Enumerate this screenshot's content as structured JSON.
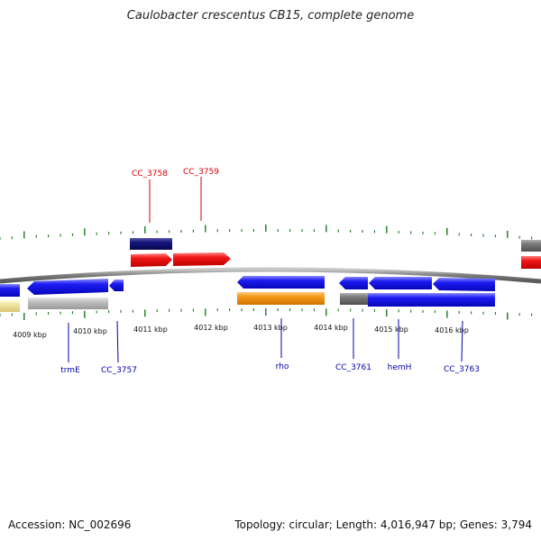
{
  "title": "Caulobacter crescentus CB15, complete genome",
  "accession": "Accession: NC_002696",
  "summary": "Topology: circular; Length: 4,016,947 bp; Genes: 3,794",
  "colors": {
    "backbone": "#808080",
    "tick": "#1a7a1a",
    "forward_label": "#dd0000",
    "reverse_label": "#0000aa",
    "blue_gene": "#1010e8",
    "red_gene": "#ee1010",
    "navy_gene": "#101070",
    "orange_gene": "#f0900c",
    "grey_gene": "#707070",
    "light_grey_gene": "#bbbbbb",
    "pale_yellow_gene": "#f0e4a0"
  },
  "scale": {
    "unit": "kbp",
    "labels": [
      "4009 kbp",
      "4010 kbp",
      "4011 kbp",
      "4012 kbp",
      "4013 kbp",
      "4014 kbp",
      "4015 kbp",
      "4016 kbp"
    ]
  },
  "labels_top": [
    "CC_3758",
    "CC_3759"
  ],
  "labels_bottom": [
    "trmE",
    "CC_3757",
    "rho",
    "CC_3761",
    "hemH",
    "CC_3763"
  ]
}
